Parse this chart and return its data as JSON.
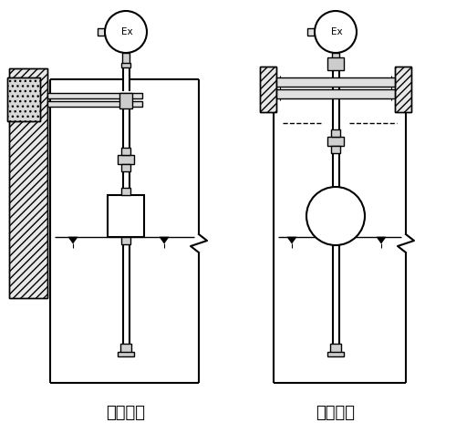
{
  "title_left": "架装固定",
  "title_right": "法兰固定",
  "bg_color": "#ffffff",
  "lw": 1.0,
  "lw2": 1.5,
  "font_size_label": 13
}
